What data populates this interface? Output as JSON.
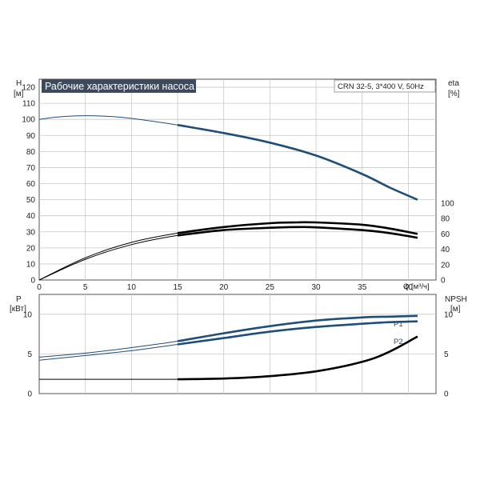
{
  "colors": {
    "blue": "#1f4e79",
    "black": "#000000",
    "grid": "#c8c8c8",
    "axis": "#555555",
    "title_bg": "#3d4a5c",
    "title_text": "#ffffff"
  },
  "chart_data": [
    {
      "type": "line",
      "title": "Рабочие характеристики насоса",
      "subtitle": "CRN 32-5, 3*400 V, 50Hz",
      "grid": true,
      "x": {
        "label": "Q [м³/ч]",
        "ticks": [
          "0",
          "5",
          "10",
          "15",
          "20",
          "25",
          "30",
          "35",
          "40"
        ],
        "lim": [
          0,
          43
        ]
      },
      "y_left": {
        "label_top": "H",
        "label_unit": "[м]",
        "ticks": [
          "0",
          "10",
          "20",
          "30",
          "40",
          "50",
          "60",
          "70",
          "80",
          "90",
          "100",
          "110",
          "120"
        ],
        "lim": [
          0,
          125
        ]
      },
      "y_right": {
        "label_top": "eta",
        "label_unit": "[%]",
        "ticks": [
          "0",
          "20",
          "40",
          "60",
          "80",
          "100"
        ],
        "lim": [
          0,
          100
        ]
      },
      "series": [
        {
          "axis": "left",
          "color": "#1f4e79",
          "style": "thin-then-thick",
          "thick_from": 15,
          "points": [
            [
              0,
              100
            ],
            [
              2,
              101.5
            ],
            [
              5,
              102.3
            ],
            [
              8,
              101.7
            ],
            [
              10,
              100.6
            ],
            [
              15,
              96.5
            ],
            [
              20,
              91.5
            ],
            [
              25,
              85.5
            ],
            [
              30,
              77.5
            ],
            [
              35,
              66
            ],
            [
              38,
              57.5
            ],
            [
              41,
              50
            ]
          ]
        },
        {
          "axis": "right",
          "color": "#000000",
          "style": "double-then-thick",
          "thick_from": 15,
          "points_upper": [
            [
              0,
              0
            ],
            [
              5,
              29
            ],
            [
              10,
              49
            ],
            [
              15,
              61
            ],
            [
              20,
              69
            ],
            [
              25,
              74
            ],
            [
              28,
              75
            ],
            [
              30,
              75
            ],
            [
              35,
              72
            ],
            [
              38,
              67
            ],
            [
              41,
              60
            ]
          ],
          "points_lower": [
            [
              0,
              0
            ],
            [
              5,
              27
            ],
            [
              10,
              46
            ],
            [
              15,
              58
            ],
            [
              20,
              65
            ],
            [
              25,
              68
            ],
            [
              28,
              69
            ],
            [
              30,
              68.5
            ],
            [
              35,
              65
            ],
            [
              38,
              61
            ],
            [
              41,
              55
            ]
          ]
        }
      ]
    },
    {
      "type": "line",
      "grid": true,
      "x": {
        "lim": [
          0,
          43
        ]
      },
      "y_left": {
        "label_top": "P",
        "label_unit": "[кВт]",
        "ticks": [
          "0",
          "5",
          "10"
        ],
        "lim": [
          0,
          12.5
        ]
      },
      "y_right": {
        "label_top": "NPSH",
        "label_unit": "[м]",
        "ticks": [
          "0",
          "5",
          "10"
        ],
        "lim": [
          0,
          12.5
        ]
      },
      "series": [
        {
          "name": "P1",
          "axis": "left",
          "color": "#1f4e79",
          "style": "double-then-thick",
          "thick_from": 15,
          "points_upper": [
            [
              0,
              4.6
            ],
            [
              5,
              5.1
            ],
            [
              10,
              5.8
            ],
            [
              15,
              6.6
            ],
            [
              20,
              7.6
            ],
            [
              25,
              8.5
            ],
            [
              30,
              9.2
            ],
            [
              35,
              9.6
            ],
            [
              38,
              9.7
            ],
            [
              41,
              9.8
            ]
          ]
        },
        {
          "name": "P2",
          "axis": "left",
          "color": "#1f4e79",
          "style": "double-then-thick",
          "thick_from": 15,
          "points_lower": [
            [
              0,
              4.2
            ],
            [
              5,
              4.8
            ],
            [
              10,
              5.4
            ],
            [
              15,
              6.2
            ],
            [
              20,
              7.0
            ],
            [
              25,
              7.8
            ],
            [
              30,
              8.4
            ],
            [
              35,
              8.8
            ],
            [
              38,
              9.0
            ],
            [
              41,
              9.1
            ]
          ]
        },
        {
          "axis": "right",
          "color": "#000000",
          "style": "thin-then-thick",
          "thick_from": 15,
          "points": [
            [
              0,
              1.8
            ],
            [
              10,
              1.8
            ],
            [
              15,
              1.8
            ],
            [
              20,
              1.9
            ],
            [
              25,
              2.2
            ],
            [
              30,
              2.8
            ],
            [
              35,
              4.0
            ],
            [
              38,
              5.3
            ],
            [
              41,
              7.2
            ]
          ]
        }
      ]
    }
  ]
}
